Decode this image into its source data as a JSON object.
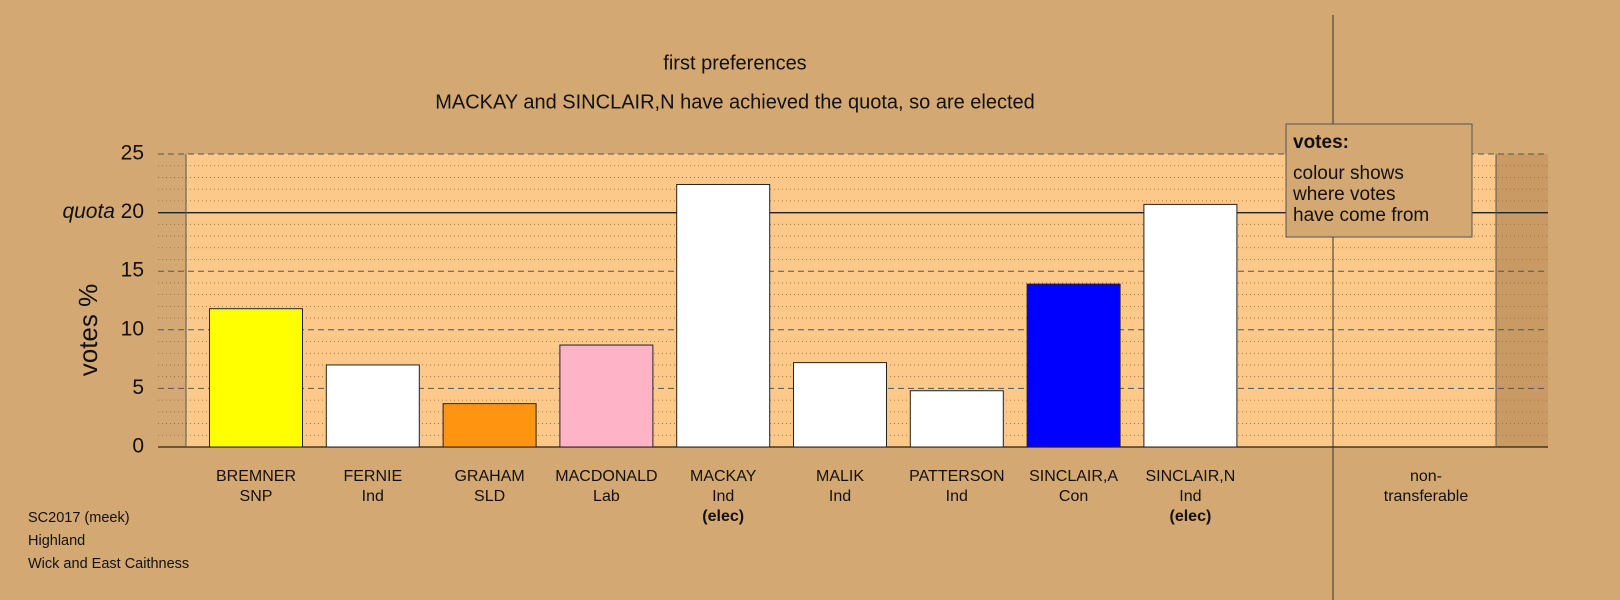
{
  "chart_data": {
    "type": "bar",
    "title": "first preferences",
    "subtitle": "MACKAY and SINCLAIR,N have achieved the quota, so are elected",
    "ylabel": "votes %",
    "categories": [
      "BREMNER",
      "FERNIE",
      "GRAHAM",
      "MACDONALD",
      "MACKAY",
      "MALIK",
      "PATTERSON",
      "SINCLAIR,A",
      "SINCLAIR,N",
      "non-"
    ],
    "parties": [
      "SNP",
      "Ind",
      "SLD",
      "Lab",
      "Ind",
      "Ind",
      "Ind",
      "Con",
      "Ind",
      "transferable"
    ],
    "notes": [
      null,
      null,
      null,
      null,
      "(elec)",
      null,
      null,
      null,
      "(elec)",
      null
    ],
    "values": [
      11.8,
      7.0,
      3.7,
      8.7,
      22.4,
      7.2,
      4.8,
      13.9,
      20.7,
      null
    ],
    "colors": [
      "#ffff00",
      "#ffffff",
      "#ff9410",
      "#ffb3c6",
      "#ffffff",
      "#ffffff",
      "#ffffff",
      "#0000ff",
      "#ffffff",
      null
    ],
    "ylim": [
      0,
      25
    ],
    "yticks": [
      0,
      5,
      10,
      15,
      20,
      25
    ],
    "minor_yticks": [
      1,
      2,
      3,
      4,
      6,
      7,
      8,
      9,
      11,
      12,
      13,
      14,
      16,
      17,
      18,
      19,
      21,
      22,
      23,
      24
    ],
    "grid": true,
    "quota": 20,
    "quota_label": "quota",
    "legend": {
      "title": "votes:",
      "lines": [
        "colour shows",
        "where votes",
        "have come from"
      ]
    },
    "footer": [
      "SC2017 (meek)",
      "Highland",
      "Wick and East Caithness"
    ]
  }
}
